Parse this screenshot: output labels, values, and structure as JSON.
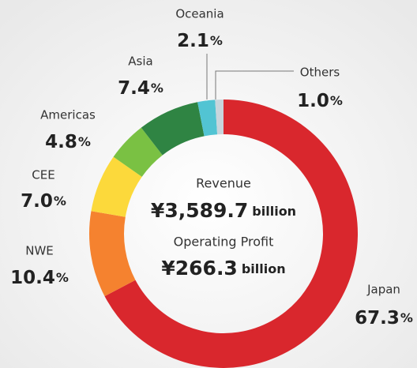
{
  "chart_data": {
    "type": "donut",
    "categories": [
      "Japan",
      "NWE",
      "CEE",
      "Americas",
      "Asia",
      "Oceania",
      "Others"
    ],
    "values": [
      67.3,
      10.4,
      7.0,
      4.8,
      7.4,
      2.1,
      1.0
    ],
    "value_labels": [
      "67.3",
      "10.4",
      "7.0",
      "4.8",
      "7.4",
      "2.1",
      "1.0"
    ],
    "unit": "%",
    "colors": [
      "#d9272d",
      "#f5822f",
      "#fcd93b",
      "#7ac143",
      "#2f8443",
      "#52c4d3",
      "#c8d5dc"
    ],
    "center": [
      {
        "label": "Revenue",
        "value": "¥3,589.7",
        "unit": "billion"
      },
      {
        "label": "Operating Profit",
        "value": "¥266.3",
        "unit": "billion"
      }
    ]
  }
}
